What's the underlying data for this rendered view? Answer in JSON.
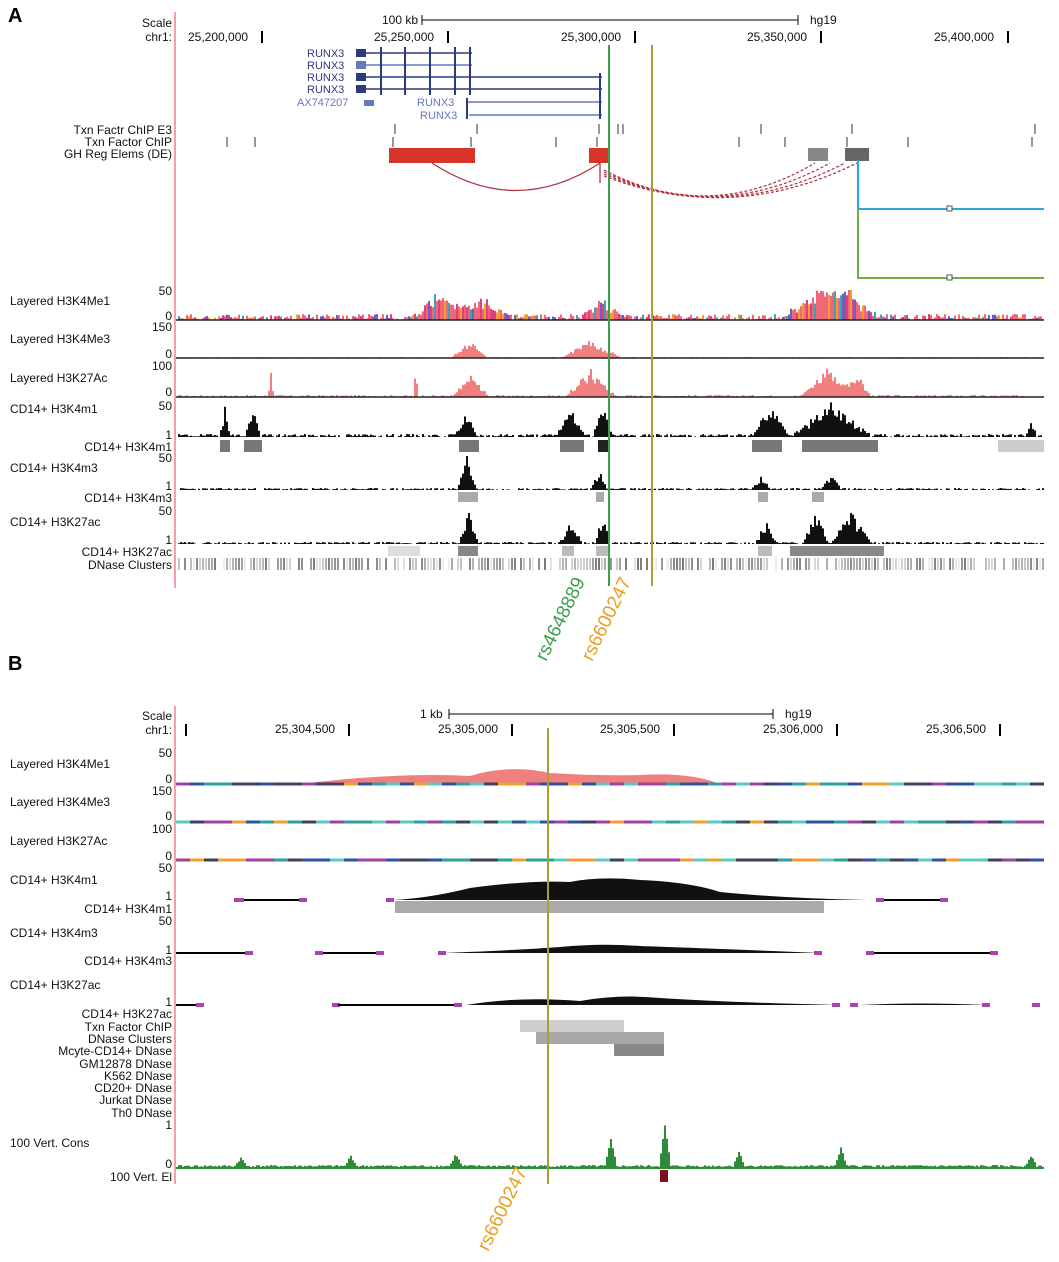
{
  "panel_a": {
    "label": "A",
    "scale_label": "Scale",
    "chrom_label": "chr1:",
    "scale_bar_text": "100 kb",
    "genome": "hg19",
    "positions": [
      "25,200,000",
      "25,250,000",
      "25,300,000",
      "25,350,000",
      "25,400,000"
    ],
    "genes": [
      "RUNX3",
      "RUNX3",
      "RUNX3",
      "RUNX3",
      "AX747207",
      "RUNX3",
      "RUNX3"
    ],
    "tracks": {
      "txn_e3": "Txn Factr ChIP E3",
      "txn_chip": "Txn Factor ChIP",
      "gh_reg": "GH Reg Elems (DE)",
      "h3k4me1": "Layered H3K4Me1",
      "h3k4me3": "Layered H3K4Me3",
      "h3k27ac": "Layered H3K27Ac",
      "cd14_h3k4m1": "CD14+ H3K4m1",
      "cd14_h3k4m1_b": "CD14+ H3K4m1",
      "cd14_h3k4m3": "CD14+ H3K4m3",
      "cd14_h3k4m3_b": "CD14+ H3K4m3",
      "cd14_h3k27ac": "CD14+ H3K27ac",
      "cd14_h3k27ac_b": "CD14+ H3K27ac",
      "dnase": "DNase Clusters"
    },
    "axis": {
      "me1_top": "50",
      "me1_bot": "0",
      "me3_top": "150",
      "me3_bot": "0",
      "k27_top": "100",
      "k27_bot": "0",
      "m1_top": "50",
      "m1_bot": "1",
      "m3_top": "50",
      "m3_bot": "1",
      "ac_top": "50",
      "ac_bot": "1"
    },
    "snp1": "rs4648889",
    "snp2": "rs6600247",
    "snp1_color": "#3aa04a",
    "snp2_color": "#e6a020"
  },
  "panel_b": {
    "label": "B",
    "scale_label": "Scale",
    "chrom_label": "chr1:",
    "scale_bar_text": "1 kb",
    "genome": "hg19",
    "positions": [
      "25,304,500",
      "25,305,000",
      "25,305,500",
      "25,306,000",
      "25,306,500"
    ],
    "tracks": {
      "h3k4me1": "Layered H3K4Me1",
      "h3k4me3": "Layered H3K4Me3",
      "h3k27ac": "Layered H3K27Ac",
      "cd14_h3k4m1": "CD14+ H3K4m1",
      "cd14_h3k4m1_b": "CD14+ H3K4m1",
      "cd14_h3k4m3": "CD14+ H3K4m3",
      "cd14_h3k4m3_b": "CD14+ H3K4m3",
      "cd14_h3k27ac": "CD14+ H3K27ac",
      "cd14_h3k27ac_b": "CD14+ H3K27ac",
      "txn_chip": "Txn Factor ChIP",
      "dnase_clusters": "DNase Clusters",
      "mcyte": "Mcyte-CD14+ DNase",
      "gm12878": "GM12878 DNase",
      "k562": "K562 DNase",
      "cd20": "CD20+ DNase",
      "jurkat": "Jurkat DNase",
      "th0": "Th0 DNase",
      "vert_cons": "100 Vert. Cons",
      "vert_el": "100 Vert. El"
    },
    "axis": {
      "me1_top": "50",
      "me1_bot": "0",
      "me3_top": "150",
      "me3_bot": "0",
      "k27_top": "100",
      "k27_bot": "0",
      "m1_top": "50",
      "m1_bot": "1",
      "m3_top": "50",
      "m3_bot": "1",
      "ac_top": "50",
      "ac_bot": "1",
      "cons_top": "1",
      "cons_bot": "0"
    },
    "snp": "rs6600247",
    "snp_color": "#e6a020"
  }
}
